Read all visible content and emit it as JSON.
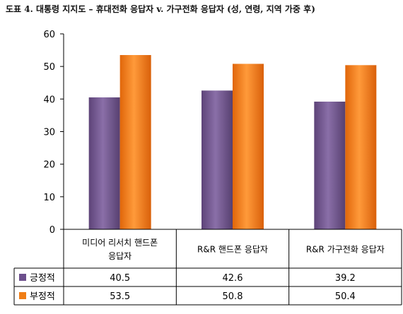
{
  "chart_data": {
    "type": "bar",
    "title": "도표 4. 대통령 지지도 – 휴대전화 응답자 v. 가구전화 응답자 (성, 연령, 지역 가중 후)",
    "categories": [
      "미디어 리서치 핸드폰 응답자",
      "R&R 핸드폰 응답자",
      "R&R 가구전화 응답자"
    ],
    "category_lines": [
      [
        "미디어 리서치 핸드폰",
        "응답자"
      ],
      [
        "R&R 핸드폰 응답자"
      ],
      [
        "R&R 가구전화 응답자"
      ]
    ],
    "series": [
      {
        "name": "긍정적",
        "values": [
          40.5,
          42.6,
          39.2
        ],
        "color": "#6c4f8c",
        "display": [
          "40.5",
          "42.6",
          "39.2"
        ]
      },
      {
        "name": "부정적",
        "values": [
          53.5,
          50.8,
          50.4
        ],
        "color": "#f07d16",
        "display": [
          "53.5",
          "50.8",
          "50.4"
        ]
      }
    ],
    "ylim": [
      0,
      60
    ],
    "yticks": [
      "0",
      "10",
      "20",
      "30",
      "40",
      "50",
      "60"
    ],
    "grid": false,
    "legend": "data-table-left"
  }
}
